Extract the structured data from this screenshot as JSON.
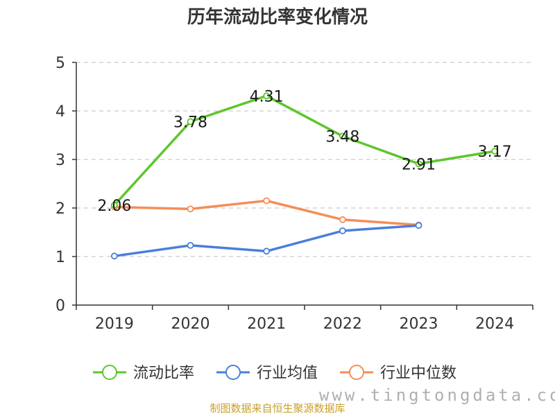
{
  "chart_data": {
    "type": "line",
    "title": "历年流动比率变化情况",
    "categories": [
      "2019",
      "2020",
      "2021",
      "2022",
      "2023",
      "2024"
    ],
    "ylim": [
      0,
      5
    ],
    "yticks": [
      "0",
      "1",
      "2",
      "3",
      "4",
      "5"
    ],
    "grid": true,
    "legend_position": "bottom",
    "series": [
      {
        "name": "流动比率",
        "color": "#5cc72b",
        "values": [
          2.06,
          3.78,
          4.31,
          3.48,
          2.91,
          3.17
        ],
        "labels": [
          "2.06",
          "3.78",
          "4.31",
          "3.48",
          "2.91",
          "3.17"
        ]
      },
      {
        "name": "行业均值",
        "color": "#4a7fdb",
        "values": [
          1.01,
          1.23,
          1.11,
          1.53,
          1.64,
          null
        ]
      },
      {
        "name": "行业中位数",
        "color": "#f58d58",
        "values": [
          2.02,
          1.98,
          2.15,
          1.76,
          1.65,
          null
        ]
      }
    ]
  },
  "footer": "制图数据来自恒生聚源数据库",
  "watermark": "www.tingtongdata.com"
}
